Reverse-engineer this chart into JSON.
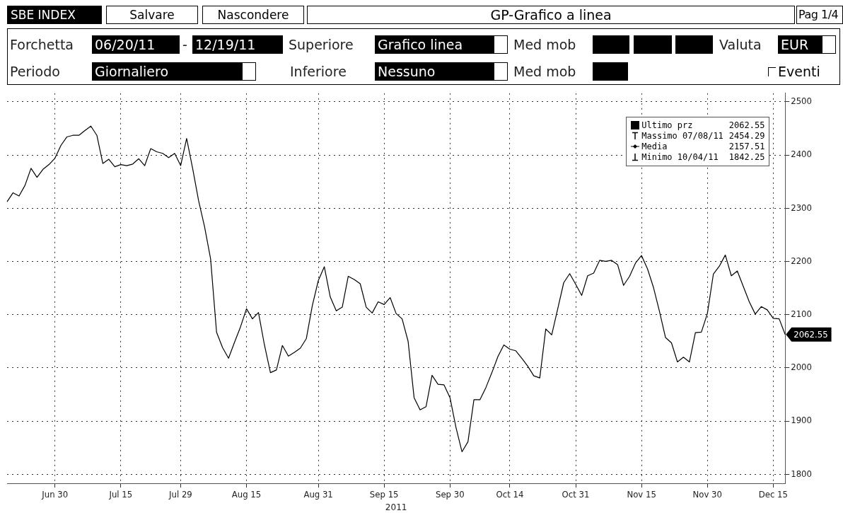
{
  "chart_data": {
    "type": "line",
    "title": "GP-Grafico a linea",
    "xlabel": "2011",
    "categories": [
      null,
      null,
      null,
      null,
      null,
      null,
      null,
      null,
      "Jun 30",
      null,
      null,
      null,
      null,
      null,
      null,
      null,
      null,
      null,
      null,
      "Jul 15",
      null,
      null,
      null,
      null,
      null,
      null,
      null,
      null,
      null,
      "Jul 29",
      null,
      null,
      null,
      null,
      null,
      null,
      null,
      null,
      null,
      null,
      "Aug 15",
      null,
      null,
      null,
      null,
      null,
      null,
      null,
      null,
      null,
      null,
      null,
      "Aug 31",
      null,
      null,
      null,
      null,
      null,
      null,
      null,
      null,
      null,
      null,
      "Sep 15",
      null,
      null,
      null,
      null,
      null,
      null,
      null,
      null,
      null,
      null,
      "Sep 30",
      null,
      null,
      null,
      null,
      null,
      null,
      null,
      null,
      null,
      "Oct 14",
      null,
      null,
      null,
      null,
      null,
      null,
      null,
      null,
      null,
      null,
      "Oct 31",
      null,
      null,
      null,
      null,
      null,
      null,
      null,
      null,
      null,
      null,
      "Nov 15",
      null,
      null,
      null,
      null,
      null,
      null,
      null,
      null,
      null,
      null,
      "Nov 30",
      null,
      null,
      null,
      null,
      null,
      null,
      null,
      null,
      null,
      null,
      "Dec 15",
      null,
      null
    ],
    "series": [
      {
        "name": "Ultimo prz",
        "color": "#000000",
        "values": [
          2312,
          2329,
          2323,
          2343,
          2375,
          2358,
          2373,
          2382,
          2394,
          2418,
          2434,
          2437,
          2437,
          2446,
          2454.29,
          2437,
          2384,
          2392,
          2378,
          2382,
          2380,
          2383,
          2393,
          2380,
          2412,
          2406,
          2403,
          2395,
          2403,
          2380,
          2431,
          2375,
          2314,
          2265,
          2205,
          2067,
          2038,
          2018,
          2048,
          2077,
          2111,
          2092,
          2104,
          2043,
          1991,
          1996,
          2042,
          2022,
          2029,
          2037,
          2055,
          2117,
          2164,
          2190,
          2133,
          2107,
          2114,
          2172,
          2166,
          2158,
          2114,
          2103,
          2124,
          2119,
          2132,
          2102,
          2092,
          2050,
          1944,
          1921,
          1927,
          1986,
          1969,
          1968,
          1944,
          1888,
          1842.25,
          1861,
          1940,
          1940,
          1963,
          1991,
          2021,
          2043,
          2035,
          2032,
          2018,
          2003,
          1985,
          1981,
          2073,
          2062,
          2111,
          2160,
          2177,
          2157,
          2136,
          2173,
          2178,
          2202,
          2200,
          2202,
          2194,
          2155,
          2172,
          2197,
          2211,
          2186,
          2151,
          2106,
          2057,
          2047,
          2011,
          2020,
          2011,
          2066,
          2067,
          2102,
          2176,
          2191,
          2212,
          2173,
          2182,
          2153,
          2124,
          2101,
          2115,
          2109,
          2093,
          2092,
          2062.55
        ]
      }
    ],
    "ylim": [
      1783,
      2516
    ],
    "yticks": [
      1800,
      1900,
      2000,
      2100,
      2200,
      2300,
      2400,
      2500
    ],
    "grid": true,
    "legend": "top right",
    "marker": "none",
    "line_style": "solid",
    "annotations": [
      "SBE INDEX",
      "Salvare",
      "Nascondere",
      "Pag 1/4",
      "Forchetta",
      "06/20/11",
      "-",
      "12/19/11",
      "Superiore",
      "Grafico linea",
      "Med mob",
      "Valuta",
      "EUR",
      "Periodo",
      "Giornaliero",
      "Inferiore",
      "Nessuno",
      "Med mob",
      "Eventi",
      "2062.55",
      "Massimo 07/08/11",
      "2454.29",
      "Media",
      "2157.51",
      "Minimo 10/04/11",
      "1842.25",
      "2062.55"
    ]
  }
}
